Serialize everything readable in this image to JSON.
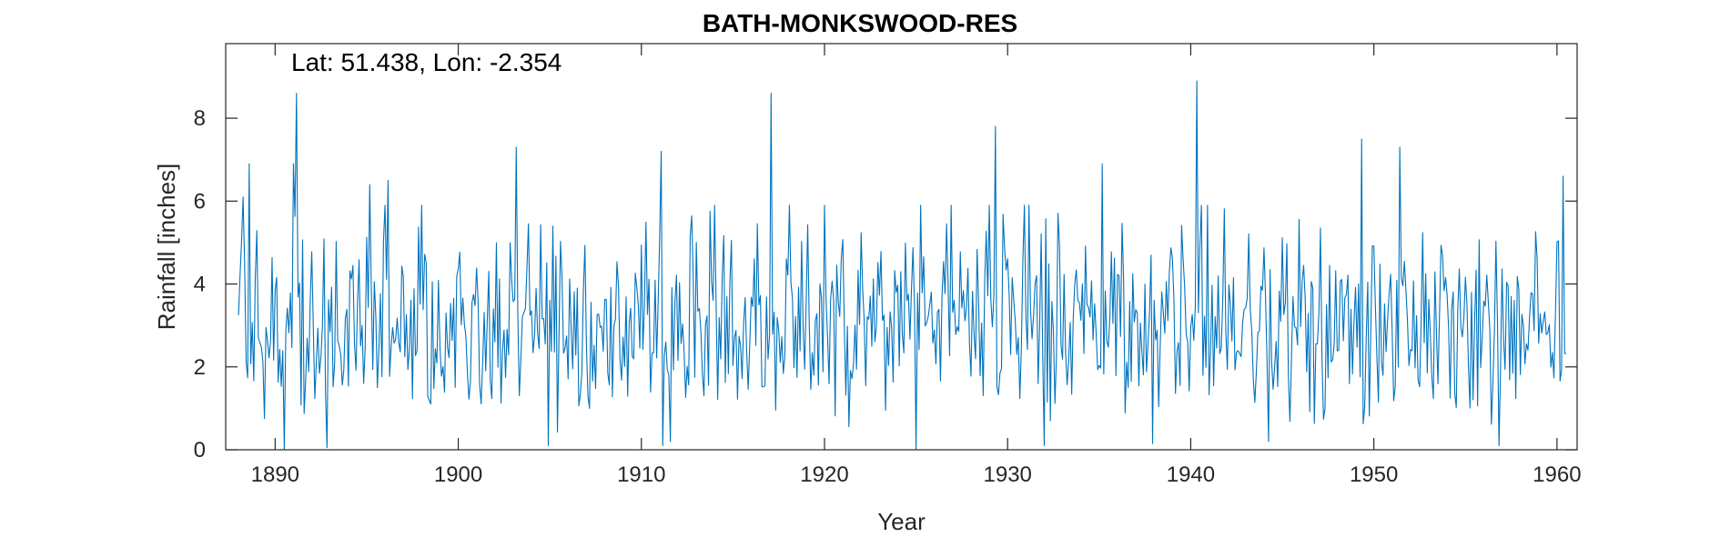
{
  "chart_data": {
    "type": "line",
    "title": "BATH-MONKSWOOD-RES",
    "xlabel": "Year",
    "ylabel": "Rainfall [inches]",
    "annotation": "Lat: 51.438, Lon: -2.354",
    "xlim": [
      1887.3,
      1961.1
    ],
    "ylim": [
      0,
      9.8
    ],
    "xticks": [
      1890,
      1900,
      1910,
      1920,
      1930,
      1940,
      1950,
      1960
    ],
    "yticks": [
      0,
      2,
      4,
      6,
      8
    ],
    "grid": false,
    "box": true,
    "series": [
      {
        "color": "#0072bd",
        "resolution": "monthly",
        "x_start": 1888.0,
        "x_end": 1960.5,
        "peaks": [
          {
            "x": 1888.25,
            "y": 6.1
          },
          {
            "x": 1888.6,
            "y": 6.9
          },
          {
            "x": 1891.0,
            "y": 6.9
          },
          {
            "x": 1891.15,
            "y": 8.6
          },
          {
            "x": 1895.2,
            "y": 6.4
          },
          {
            "x": 1896.2,
            "y": 6.5
          },
          {
            "x": 1903.2,
            "y": 7.3
          },
          {
            "x": 1911.1,
            "y": 7.2
          },
          {
            "x": 1917.1,
            "y": 8.6
          },
          {
            "x": 1929.3,
            "y": 7.8
          },
          {
            "x": 1935.2,
            "y": 6.9
          },
          {
            "x": 1940.3,
            "y": 8.9
          },
          {
            "x": 1949.3,
            "y": 7.5
          },
          {
            "x": 1951.4,
            "y": 7.3
          },
          {
            "x": 1960.3,
            "y": 6.6
          }
        ],
        "troughs": [
          {
            "x": 1890.5,
            "y": 0.0
          },
          {
            "x": 1892.8,
            "y": 0.05
          },
          {
            "x": 1904.9,
            "y": 0.1
          },
          {
            "x": 1911.2,
            "y": 0.1
          },
          {
            "x": 1925.0,
            "y": 0.0
          },
          {
            "x": 1932.0,
            "y": 0.1
          },
          {
            "x": 1937.9,
            "y": 0.15
          },
          {
            "x": 1956.8,
            "y": 0.1
          }
        ]
      }
    ]
  }
}
